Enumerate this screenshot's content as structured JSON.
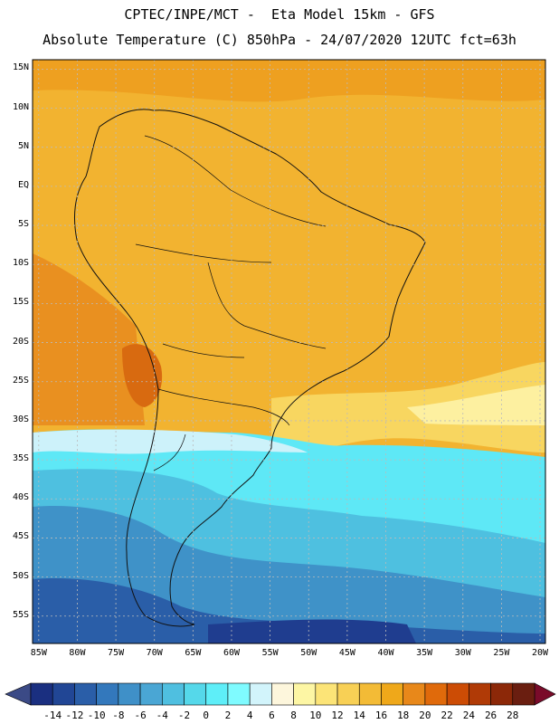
{
  "title": {
    "line1": "CPTEC/INPE/MCT -  Eta Model 15km - GFS",
    "line2": "Absolute Temperature (C) 850hPa - 24/07/2020 12UTC fct=63h"
  },
  "map": {
    "lat_labels": [
      "15N",
      "10N",
      "5N",
      "EQ",
      "5S",
      "10S",
      "15S",
      "20S",
      "25S",
      "30S",
      "35S",
      "40S",
      "45S",
      "50S",
      "55S"
    ],
    "lon_labels": [
      "85W",
      "80W",
      "75W",
      "70W",
      "65W",
      "60W",
      "55W",
      "50W",
      "45W",
      "40W",
      "35W",
      "30W",
      "25W",
      "20W"
    ]
  },
  "colorbar": {
    "labels": [
      "-14",
      "-12",
      "-10",
      "-8",
      "-6",
      "-4",
      "-2",
      "0",
      "2",
      "4",
      "6",
      "8",
      "10",
      "12",
      "14",
      "16",
      "18",
      "20",
      "22",
      "24",
      "26",
      "28"
    ],
    "colors": [
      "#1a2f80",
      "#214695",
      "#2a5ea8",
      "#3378bc",
      "#3f90c8",
      "#4aa6d4",
      "#4fbfe0",
      "#55d8ea",
      "#5eeef8",
      "#7ffbff",
      "#d2f4fb",
      "#fdf6dc",
      "#fdf6a4",
      "#fce477",
      "#f8d055",
      "#f3bb36",
      "#efa81a",
      "#e8881a",
      "#e06a0b",
      "#cc4c05",
      "#b03a06",
      "#8c2808",
      "#6a1e10"
    ],
    "low_arrow_color": "#3b4a86",
    "high_arrow_color": "#7a0b2a"
  }
}
